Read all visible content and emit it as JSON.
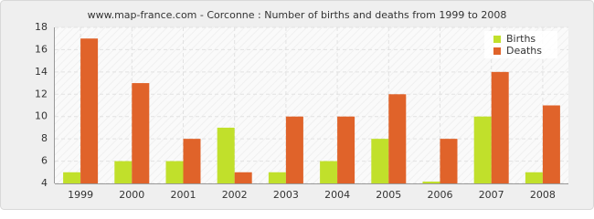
{
  "chart_data": {
    "type": "bar",
    "title": "www.map-france.com - Corconne : Number of births and deaths from 1999 to 2008",
    "categories": [
      "1999",
      "2000",
      "2001",
      "2002",
      "2003",
      "2004",
      "2005",
      "2006",
      "2007",
      "2008"
    ],
    "series": [
      {
        "name": "Births",
        "color": "#c1e02b",
        "values": [
          5,
          6,
          6,
          9,
          5,
          6,
          8,
          4,
          10,
          5
        ]
      },
      {
        "name": "Deaths",
        "color": "#e0632a",
        "values": [
          17,
          13,
          8,
          5,
          10,
          10,
          12,
          8,
          14,
          11
        ]
      }
    ],
    "ylim": [
      4,
      18
    ],
    "yticks": [
      4,
      6,
      8,
      10,
      12,
      14,
      16,
      18
    ],
    "grid": true,
    "legend": "top-right"
  }
}
